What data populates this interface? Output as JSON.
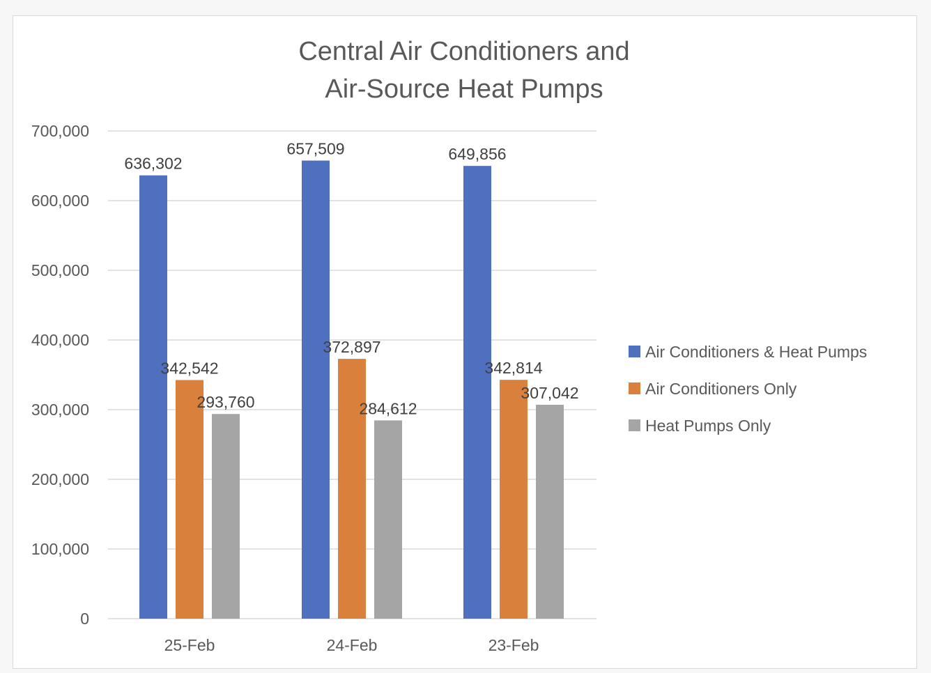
{
  "chart_data": {
    "type": "bar",
    "title_lines": [
      "Central Air Conditioners and",
      "Air-Source Heat Pumps"
    ],
    "categories": [
      "25-Feb",
      "24-Feb",
      "23-Feb"
    ],
    "series": [
      {
        "name": "Air Conditioners & Heat Pumps",
        "color": "#4f6fbf",
        "values": [
          636302,
          657509,
          649856
        ]
      },
      {
        "name": "Air Conditioners Only",
        "color": "#d9813c",
        "values": [
          342542,
          372897,
          342814
        ]
      },
      {
        "name": "Heat Pumps Only",
        "color": "#a5a5a5",
        "values": [
          293760,
          284612,
          307042
        ]
      }
    ],
    "y_ticks": [
      "0",
      "100,000",
      "200,000",
      "300,000",
      "400,000",
      "500,000",
      "600,000",
      "700,000"
    ],
    "ylim": [
      0,
      700000
    ],
    "data_labels": [
      [
        "636,302",
        "342,542",
        "293,760"
      ],
      [
        "657,509",
        "372,897",
        "284,612"
      ],
      [
        "649,856",
        "342,814",
        "307,042"
      ]
    ],
    "legend_position": "right",
    "grid": true
  }
}
